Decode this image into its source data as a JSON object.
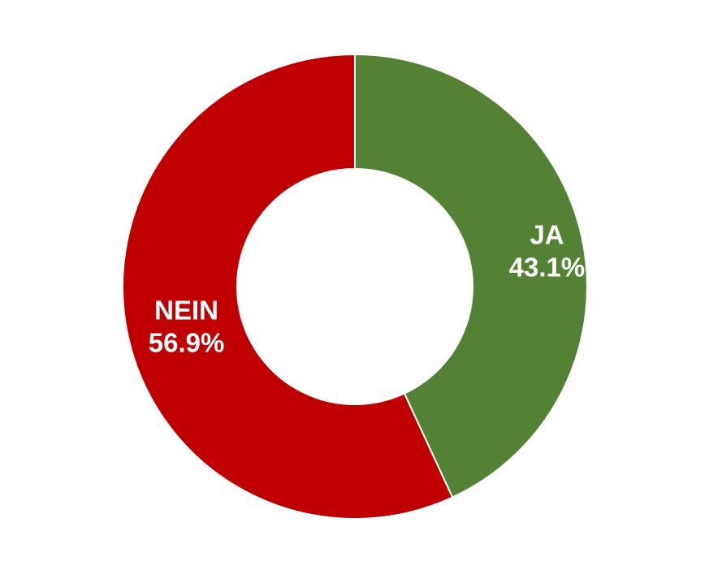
{
  "chart_data": {
    "type": "pie",
    "variant": "donut",
    "start": "12 o'clock",
    "direction": "clockwise",
    "slices": [
      {
        "label": "JA",
        "value": 43.1,
        "value_label": "43.1%",
        "color": "#548235"
      },
      {
        "label": "NEIN",
        "value": 56.9,
        "value_label": "56.9%",
        "color": "#c00000"
      }
    ],
    "slice_border_color": "#ffffff",
    "hole_color": "#ffffff",
    "legend": "none"
  }
}
